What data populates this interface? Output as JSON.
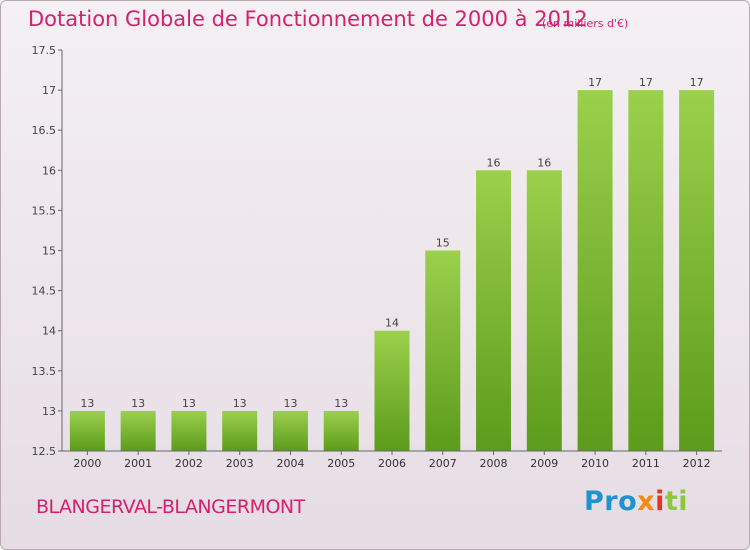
{
  "header": {
    "title": "Dotation Globale de Fonctionnement de 2000 à 2012",
    "subtitle": "(en milliers d'€)"
  },
  "footer": {
    "commune": "BLANGERVAL-BLANGERMONT",
    "logo_parts": [
      "Pro",
      "x",
      "i",
      "ti"
    ]
  },
  "colors": {
    "accent": "#d4206f",
    "bar_light": "#9bd04c",
    "bar_dark": "#5c9b1b",
    "logo_blue": "#1d93cf",
    "logo_orange": "#f08a1a",
    "logo_red": "#e63326",
    "logo_green": "#8dc63f"
  },
  "chart_data": {
    "type": "bar",
    "title": "Dotation Globale de Fonctionnement de 2000 à 2012",
    "subtitle": "(en milliers d'€)",
    "xlabel": "",
    "ylabel": "",
    "categories": [
      "2000",
      "2001",
      "2002",
      "2003",
      "2004",
      "2005",
      "2006",
      "2007",
      "2008",
      "2009",
      "2010",
      "2011",
      "2012"
    ],
    "values": [
      13,
      13,
      13,
      13,
      13,
      13,
      14,
      15,
      16,
      16,
      17,
      17,
      17
    ],
    "data_labels": [
      "13",
      "13",
      "13",
      "13",
      "13",
      "13",
      "14",
      "15",
      "16",
      "16",
      "17",
      "17",
      "17"
    ],
    "ylim": [
      12.5,
      17.5
    ],
    "yticks": [
      12.5,
      13,
      13.5,
      14,
      14.5,
      15,
      15.5,
      16,
      16.5,
      17,
      17.5
    ],
    "ytick_labels": [
      "12.5",
      "13",
      "13.5",
      "14",
      "14.5",
      "15",
      "15.5",
      "16",
      "16.5",
      "17",
      "17.5"
    ],
    "grid": false,
    "legend": "none"
  }
}
